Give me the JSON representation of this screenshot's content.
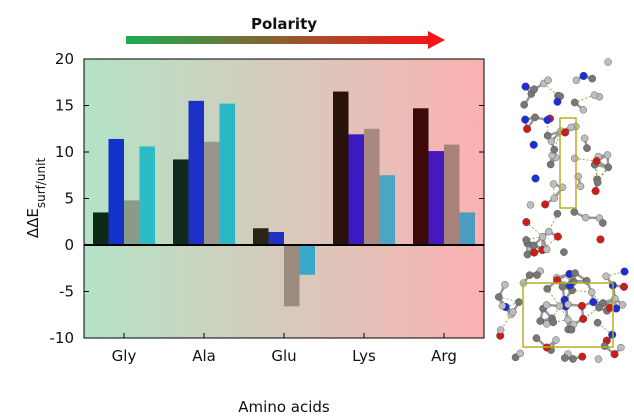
{
  "chart_data": {
    "type": "bar",
    "title": "",
    "annotation": "Polarity",
    "xlabel": "Amino acids",
    "ylabel_main": "ΔΔE",
    "ylabel_sub": "surf/unit",
    "ylim": [
      -10,
      20
    ],
    "yticks": [
      -10,
      -5,
      0,
      5,
      10,
      15,
      20
    ],
    "categories": [
      "Gly",
      "Ala",
      "Glu",
      "Lys",
      "Arg"
    ],
    "series": [
      {
        "values": [
          3.5,
          9.2,
          1.8,
          16.5,
          14.7
        ]
      },
      {
        "values": [
          11.4,
          15.5,
          1.4,
          11.9,
          10.1
        ]
      },
      {
        "values": [
          4.8,
          11.1,
          -6.6,
          12.5,
          10.8
        ]
      },
      {
        "values": [
          10.6,
          15.2,
          -3.2,
          7.5,
          3.5
        ]
      }
    ],
    "bar_colors": [
      [
        "#0d2a17",
        "#112a1c",
        "#2a2412",
        "#2a120c",
        "#3d0a0a"
      ],
      [
        "#1333c8",
        "#1a30c6",
        "#2030c0",
        "#3a1bc0",
        "#4518c0"
      ],
      [
        "#8c9a8a",
        "#98968a",
        "#9c8c80",
        "#a88880",
        "#a8827a"
      ],
      [
        "#2bbcc6",
        "#2ab8c6",
        "#3aa8c8",
        "#4aa6c2",
        "#4a9cc0"
      ]
    ],
    "background_gradient": [
      "#b3e3c7",
      "#fbb1b1"
    ],
    "arrow_gradient": [
      "#1dab4f",
      "#f51616"
    ],
    "grid": false,
    "legend": "none"
  }
}
